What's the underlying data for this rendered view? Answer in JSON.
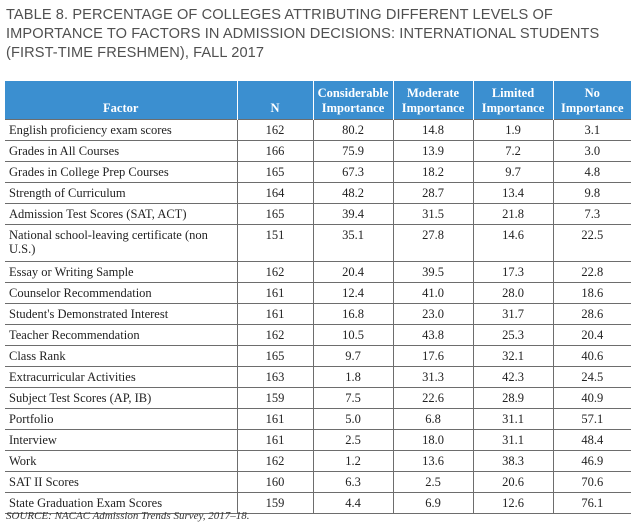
{
  "title": "TABLE 8. PERCENTAGE OF COLLEGES ATTRIBUTING DIFFERENT LEVELS OF IMPORTANCE TO FACTORS IN ADMISSION DECISIONS: INTERNATIONAL STUDENTS (FIRST-TIME FRESHMEN), FALL 2017",
  "header_color": "#3b8fd0",
  "columns": {
    "factor": "Factor",
    "n": "N",
    "considerable": [
      "Considerable",
      "Importance"
    ],
    "moderate": [
      "Moderate",
      "Importance"
    ],
    "limited": [
      "Limited",
      "Importance"
    ],
    "no": [
      "No",
      "Importance"
    ]
  },
  "rows": [
    [
      "English proficiency exam scores",
      "162",
      "80.2",
      "14.8",
      "1.9",
      "3.1"
    ],
    [
      "Grades in All Courses",
      "166",
      "75.9",
      "13.9",
      "7.2",
      "3.0"
    ],
    [
      "Grades in College Prep Courses",
      "165",
      "67.3",
      "18.2",
      "9.7",
      "4.8"
    ],
    [
      "Strength of Curriculum",
      "164",
      "48.2",
      "28.7",
      "13.4",
      "9.8"
    ],
    [
      "Admission Test Scores (SAT, ACT)",
      "165",
      "39.4",
      "31.5",
      "21.8",
      "7.3"
    ],
    [
      "National school-leaving certificate (non U.S.)",
      "151",
      "35.1",
      "27.8",
      "14.6",
      "22.5"
    ],
    [
      "Essay or Writing Sample",
      "162",
      "20.4",
      "39.5",
      "17.3",
      "22.8"
    ],
    [
      "Counselor Recommendation",
      "161",
      "12.4",
      "41.0",
      "28.0",
      "18.6"
    ],
    [
      "Student's Demonstrated Interest",
      "161",
      "16.8",
      "23.0",
      "31.7",
      "28.6"
    ],
    [
      "Teacher Recommendation",
      "162",
      "10.5",
      "43.8",
      "25.3",
      "20.4"
    ],
    [
      "Class Rank",
      "165",
      "9.7",
      "17.6",
      "32.1",
      "40.6"
    ],
    [
      "Extracurricular Activities",
      "163",
      "1.8",
      "31.3",
      "42.3",
      "24.5"
    ],
    [
      "Subject Test Scores (AP, IB)",
      "159",
      "7.5",
      "22.6",
      "28.9",
      "40.9"
    ],
    [
      "Portfolio",
      "161",
      "5.0",
      "6.8",
      "31.1",
      "57.1"
    ],
    [
      "Interview",
      "161",
      "2.5",
      "18.0",
      "31.1",
      "48.4"
    ],
    [
      "Work",
      "162",
      "1.2",
      "13.6",
      "38.3",
      "46.9"
    ],
    [
      "SAT II Scores",
      "160",
      "6.3",
      "2.5",
      "20.6",
      "70.6"
    ],
    [
      "State Graduation Exam Scores",
      "159",
      "4.4",
      "6.9",
      "12.6",
      "76.1"
    ]
  ],
  "source": "SOURCE: NACAC Admission Trends Survey, 2017–18."
}
